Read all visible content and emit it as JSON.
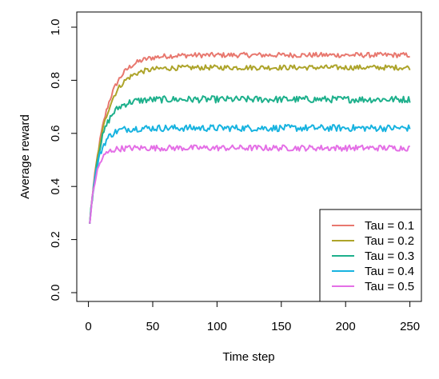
{
  "chart_data": {
    "type": "line",
    "title": "",
    "xlabel": "Time step",
    "ylabel": "Average reward",
    "xlim": [
      0,
      250
    ],
    "ylim": [
      0,
      1
    ],
    "x_ticks": [
      "0",
      "50",
      "100",
      "150",
      "200",
      "250"
    ],
    "y_ticks": [
      "0.0",
      "0.2",
      "0.4",
      "0.6",
      "0.8",
      "1.0"
    ],
    "legend_position": "bottom-right",
    "grid": false,
    "x_start": 1,
    "x_end": 250,
    "series": [
      {
        "name": "Tau = 0.1",
        "color": "#E8786F",
        "start": 0.26,
        "plateau": 0.895,
        "rate": 0.085,
        "noise": 0.006
      },
      {
        "name": "Tau = 0.2",
        "color": "#ADA42A",
        "start": 0.26,
        "plateau": 0.848,
        "rate": 0.09,
        "noise": 0.006
      },
      {
        "name": "Tau = 0.3",
        "color": "#1EB08C",
        "start": 0.26,
        "plateau": 0.728,
        "rate": 0.12,
        "noise": 0.008
      },
      {
        "name": "Tau = 0.4",
        "color": "#18B3E0",
        "start": 0.26,
        "plateau": 0.62,
        "rate": 0.16,
        "noise": 0.008
      },
      {
        "name": "Tau = 0.5",
        "color": "#E46FE6",
        "start": 0.26,
        "plateau": 0.545,
        "rate": 0.2,
        "noise": 0.007
      }
    ]
  }
}
